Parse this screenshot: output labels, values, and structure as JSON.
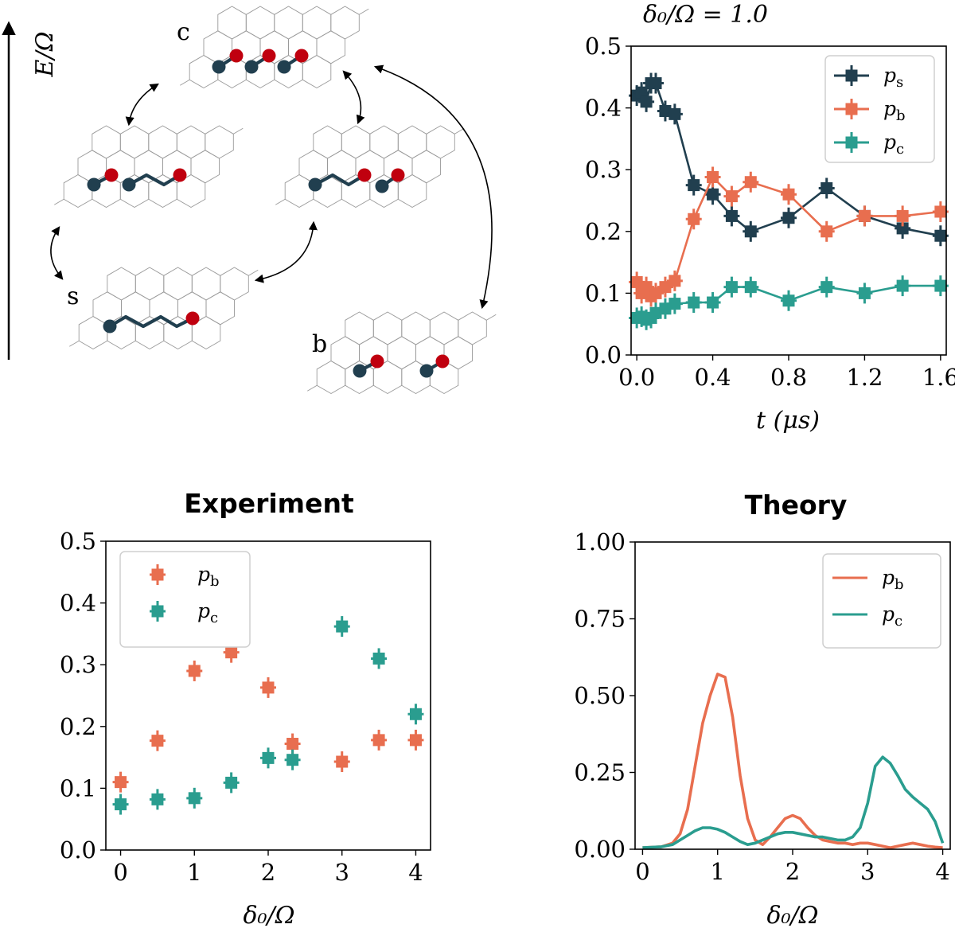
{
  "colors": {
    "s": "#213f4f",
    "b": "#e86e4f",
    "c": "#2a9d8f",
    "red_atom": "#c0000f",
    "lattice": "#9a9a9a"
  },
  "diagram": {
    "energy_axis_label": "E/Ω",
    "states": [
      {
        "key": "c",
        "label": "c"
      },
      {
        "key": "s",
        "label": "s"
      },
      {
        "key": "b",
        "label": "b"
      }
    ]
  },
  "chart_data": [
    {
      "id": "time",
      "type": "line",
      "title": "δ₀/Ω = 1.0",
      "xlabel": "t (μs)",
      "ylabel": "",
      "xlim": [
        -0.03,
        1.63
      ],
      "ylim": [
        0.0,
        0.5
      ],
      "xticks": [
        0.0,
        0.4,
        0.8,
        1.2,
        1.6
      ],
      "xtick_labels": [
        "0.0",
        "0.4",
        "0.8",
        "1.2",
        "1.6"
      ],
      "yticks": [
        0.0,
        0.1,
        0.2,
        0.3,
        0.4,
        0.5
      ],
      "ytick_labels": [
        "0.0",
        "0.1",
        "0.2",
        "0.3",
        "0.4",
        "0.5"
      ],
      "legend_position": "top-right",
      "x": [
        0.0,
        0.025,
        0.05,
        0.075,
        0.1,
        0.15,
        0.2,
        0.3,
        0.4,
        0.5,
        0.6,
        0.8,
        1.0,
        1.2,
        1.4,
        1.6
      ],
      "series": [
        {
          "name": "p_s",
          "key": "s",
          "legend": "p",
          "sub": "s",
          "values": [
            0.42,
            0.425,
            0.41,
            0.44,
            0.44,
            0.395,
            0.39,
            0.275,
            0.26,
            0.225,
            0.2,
            0.222,
            0.27,
            0.225,
            0.205,
            0.193
          ]
        },
        {
          "name": "p_b",
          "key": "b",
          "legend": "p",
          "sub": "b",
          "values": [
            0.118,
            0.1,
            0.11,
            0.095,
            0.1,
            0.11,
            0.12,
            0.22,
            0.288,
            0.257,
            0.28,
            0.26,
            0.2,
            0.225,
            0.225,
            0.232
          ]
        },
        {
          "name": "p_c",
          "key": "c",
          "legend": "p",
          "sub": "c",
          "values": [
            0.06,
            0.062,
            0.057,
            0.06,
            0.068,
            0.075,
            0.083,
            0.085,
            0.085,
            0.11,
            0.11,
            0.088,
            0.11,
            0.1,
            0.112,
            0.112
          ]
        }
      ]
    },
    {
      "id": "experiment",
      "type": "scatter",
      "title": "Experiment",
      "xlabel": "δ₀/Ω",
      "ylabel": "",
      "xlim": [
        -0.2,
        4.2
      ],
      "ylim": [
        0.0,
        0.5
      ],
      "xticks": [
        0,
        1,
        2,
        3,
        4
      ],
      "xtick_labels": [
        "0",
        "1",
        "2",
        "3",
        "4"
      ],
      "yticks": [
        0.0,
        0.1,
        0.2,
        0.3,
        0.4,
        0.5
      ],
      "ytick_labels": [
        "0.0",
        "0.1",
        "0.2",
        "0.3",
        "0.4",
        "0.5"
      ],
      "legend_position": "top-left",
      "x": [
        0,
        0.5,
        1,
        1.5,
        2,
        2.33,
        3,
        3.5,
        4
      ],
      "series": [
        {
          "name": "p_b",
          "key": "b",
          "legend": "p",
          "sub": "b",
          "values": [
            0.11,
            0.177,
            0.29,
            0.32,
            0.263,
            0.172,
            0.143,
            0.178,
            0.178
          ]
        },
        {
          "name": "p_c",
          "key": "c",
          "legend": "p",
          "sub": "c",
          "values": [
            0.074,
            0.082,
            0.084,
            0.109,
            0.149,
            0.146,
            0.362,
            0.31,
            0.22
          ]
        }
      ]
    },
    {
      "id": "theory",
      "type": "line",
      "title": "Theory",
      "xlabel": "δ₀/Ω",
      "ylabel": "",
      "xlim": [
        -0.1,
        4.1
      ],
      "ylim": [
        0.0,
        1.0
      ],
      "xticks": [
        0,
        1,
        2,
        3,
        4
      ],
      "xtick_labels": [
        "0",
        "1",
        "2",
        "3",
        "4"
      ],
      "yticks": [
        0.0,
        0.25,
        0.5,
        0.75,
        1.0
      ],
      "ytick_labels": [
        "0.00",
        "0.25",
        "0.50",
        "0.75",
        "1.00"
      ],
      "legend_position": "top-right",
      "x": [
        0,
        0.25,
        0.4,
        0.5,
        0.6,
        0.7,
        0.8,
        0.9,
        1.0,
        1.1,
        1.2,
        1.3,
        1.4,
        1.5,
        1.6,
        1.7,
        1.8,
        1.9,
        2.0,
        2.1,
        2.2,
        2.3,
        2.4,
        2.5,
        2.6,
        2.7,
        2.8,
        2.9,
        3.0,
        3.1,
        3.2,
        3.3,
        3.4,
        3.5,
        3.6,
        3.7,
        3.8,
        3.9,
        4.0
      ],
      "series": [
        {
          "name": "p_b",
          "key": "b",
          "legend": "p",
          "sub": "b",
          "values": [
            0.005,
            0.008,
            0.02,
            0.05,
            0.13,
            0.27,
            0.41,
            0.5,
            0.57,
            0.56,
            0.43,
            0.24,
            0.1,
            0.03,
            0.015,
            0.04,
            0.07,
            0.1,
            0.11,
            0.1,
            0.07,
            0.045,
            0.03,
            0.025,
            0.02,
            0.02,
            0.015,
            0.02,
            0.02,
            0.015,
            0.01,
            0.005,
            0.01,
            0.015,
            0.02,
            0.015,
            0.01,
            0.007,
            0.005
          ]
        },
        {
          "name": "p_c",
          "key": "c",
          "legend": "p",
          "sub": "c",
          "values": [
            0.005,
            0.008,
            0.015,
            0.03,
            0.045,
            0.06,
            0.07,
            0.07,
            0.065,
            0.055,
            0.04,
            0.025,
            0.015,
            0.02,
            0.03,
            0.04,
            0.05,
            0.055,
            0.055,
            0.05,
            0.045,
            0.04,
            0.04,
            0.035,
            0.03,
            0.03,
            0.04,
            0.07,
            0.15,
            0.27,
            0.3,
            0.28,
            0.24,
            0.195,
            0.17,
            0.15,
            0.13,
            0.09,
            0.02
          ]
        }
      ]
    }
  ]
}
